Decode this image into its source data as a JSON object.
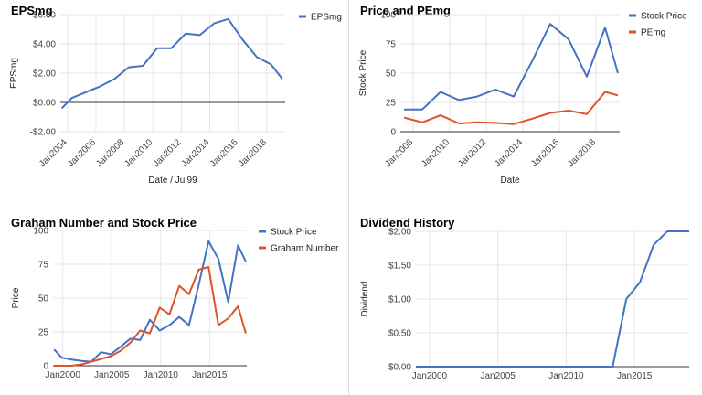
{
  "colors": {
    "blue": "#4472c4",
    "red": "#e0512c",
    "grid": "#e6e6e6",
    "zero": "#333333"
  },
  "chart_data": [
    {
      "id": "eps",
      "type": "line",
      "title": "EPSmg",
      "xlabel": "Date / Jul99",
      "ylabel": "EPSmg",
      "x_type": "year",
      "xlim": [
        2003.5,
        2019.3
      ],
      "ylim": [
        -2,
        6
      ],
      "yticks": [
        -2,
        0,
        2,
        4,
        6
      ],
      "ytick_labels": [
        "-$2.00",
        "$0.00",
        "$2.00",
        "$4.00",
        "$6.00"
      ],
      "xticks": [
        2004,
        2006,
        2008,
        2010,
        2012,
        2014,
        2016,
        2018
      ],
      "xtick_labels": [
        "Jan2004",
        "Jan2006",
        "Jan2008",
        "Jan2010",
        "Jan2012",
        "Jan2014",
        "Jan2016",
        "Jan2018"
      ],
      "zero_line": true,
      "legend": "right",
      "series": [
        {
          "name": "EPSmg",
          "color": "#4472c4",
          "x": [
            2003.6,
            2004.3,
            2005.3,
            2006.3,
            2007.3,
            2008.3,
            2009.3,
            2010.3,
            2011.3,
            2012.3,
            2013.3,
            2014.3,
            2015.3,
            2016.3,
            2017.3,
            2018.3,
            2019.1
          ],
          "y": [
            -0.4,
            0.3,
            0.7,
            1.1,
            1.6,
            2.4,
            2.5,
            3.7,
            3.7,
            4.7,
            4.6,
            5.4,
            5.7,
            4.3,
            3.1,
            2.6,
            1.6
          ]
        }
      ]
    },
    {
      "id": "price",
      "type": "line",
      "title": "Price and PEmg",
      "xlabel": "Date",
      "ylabel": "Stock Price",
      "x_type": "year",
      "xlim": [
        2007.3,
        2019.3
      ],
      "ylim": [
        0,
        100
      ],
      "yticks": [
        0,
        25,
        50,
        75,
        100
      ],
      "ytick_labels": [
        "0",
        "25",
        "50",
        "75",
        "100"
      ],
      "xticks": [
        2008,
        2010,
        2012,
        2014,
        2016,
        2018
      ],
      "xtick_labels": [
        "Jan2008",
        "Jan2010",
        "Jan2012",
        "Jan2014",
        "Jan2016",
        "Jan2018"
      ],
      "zero_line": false,
      "legend": "right",
      "series": [
        {
          "name": "Stock Price",
          "color": "#4472c4",
          "x": [
            2007.5,
            2008.5,
            2009.5,
            2010.5,
            2011.5,
            2012.5,
            2013.5,
            2014.5,
            2015.5,
            2016.5,
            2017.5,
            2018.5,
            2019.2
          ],
          "y": [
            19,
            19,
            34,
            27,
            30,
            36,
            30,
            60,
            92,
            79,
            47,
            89,
            50
          ]
        },
        {
          "name": "PEmg",
          "color": "#e0512c",
          "x": [
            2007.5,
            2008.5,
            2009.5,
            2010.5,
            2011.5,
            2012.5,
            2013.5,
            2014.5,
            2015.5,
            2016.5,
            2017.5,
            2018.5,
            2019.2
          ],
          "y": [
            12,
            8,
            14,
            7,
            8,
            7.5,
            6.5,
            11,
            16,
            18,
            15,
            34,
            31
          ]
        }
      ]
    },
    {
      "id": "graham",
      "type": "line",
      "title": "Graham Number and Stock Price",
      "xlabel": "Date",
      "ylabel": "Price",
      "x_type": "year",
      "xlim": [
        1999.0,
        2018.8
      ],
      "ylim": [
        0,
        100
      ],
      "yticks": [
        0,
        25,
        50,
        75,
        100
      ],
      "ytick_labels": [
        "0",
        "25",
        "50",
        "75",
        "100"
      ],
      "xticks": [
        2000,
        2005,
        2010,
        2015
      ],
      "xtick_labels": [
        "Jan2000",
        "Jan2005",
        "Jan2010",
        "Jan2015"
      ],
      "zero_line": false,
      "legend": "right",
      "series": [
        {
          "name": "Stock Price",
          "color": "#4472c4",
          "x": [
            1999.1,
            1999.9,
            2000.9,
            2001.9,
            2002.9,
            2003.9,
            2004.9,
            2005.9,
            2006.9,
            2007.9,
            2008.9,
            2009.9,
            2010.9,
            2011.9,
            2012.9,
            2013.9,
            2014.9,
            2015.9,
            2016.9,
            2017.9,
            2018.7
          ],
          "y": [
            12,
            6,
            4.5,
            3.5,
            3,
            10,
            8.5,
            14,
            20,
            19,
            34,
            26,
            30,
            36,
            30,
            60,
            92,
            79,
            47,
            89,
            77
          ]
        },
        {
          "name": "Graham Number",
          "color": "#e0512c",
          "x": [
            1999.1,
            1999.9,
            2000.9,
            2001.9,
            2002.9,
            2003.9,
            2004.9,
            2005.9,
            2006.9,
            2007.9,
            2008.9,
            2009.9,
            2010.9,
            2011.9,
            2012.9,
            2013.9,
            2014.9,
            2015.9,
            2016.9,
            2017.9,
            2018.7
          ],
          "y": [
            0,
            0,
            0,
            1,
            3,
            5,
            7,
            11,
            17,
            26,
            24,
            43,
            38,
            59,
            53,
            71,
            73,
            30,
            35,
            44,
            24
          ]
        }
      ]
    },
    {
      "id": "dividend",
      "type": "line",
      "title": "Dividend History",
      "xlabel": "",
      "ylabel": "Dividend",
      "x_type": "year",
      "xlim": [
        1999.0,
        2019.0
      ],
      "ylim": [
        0,
        2
      ],
      "yticks": [
        0,
        0.5,
        1,
        1.5,
        2
      ],
      "ytick_labels": [
        "$0.00",
        "$0.50",
        "$1.00",
        "$1.50",
        "$2.00"
      ],
      "xticks": [
        2000,
        2005,
        2010,
        2015
      ],
      "xtick_labels": [
        "Jan2000",
        "Jan2005",
        "Jan2010",
        "Jan2015"
      ],
      "zero_line": false,
      "legend": "none",
      "series": [
        {
          "name": "",
          "color": "#4472c4",
          "x": [
            1999.0,
            2013.4,
            2014.4,
            2015.4,
            2016.4,
            2017.4,
            2019.0
          ],
          "y": [
            0,
            0,
            1.0,
            1.25,
            1.8,
            2.0,
            2.0
          ]
        }
      ]
    }
  ]
}
